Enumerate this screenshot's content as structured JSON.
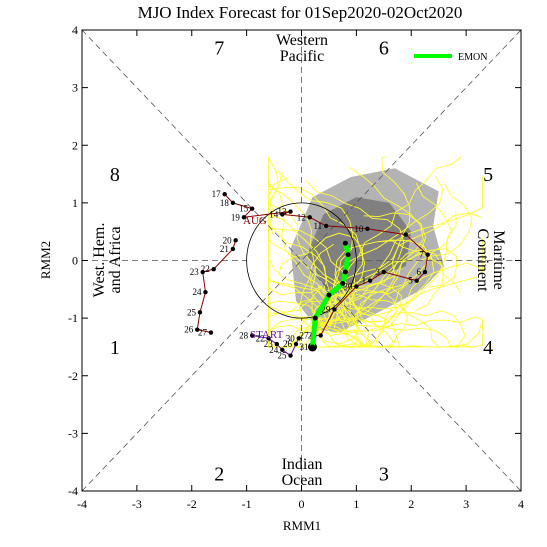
{
  "chart_data": {
    "type": "line",
    "title": "MJO Index Forecast for 01Sep2020-02Oct2020",
    "xlabel": "RMM1",
    "ylabel": "RMM2",
    "xlim": [
      -4,
      4
    ],
    "ylim": [
      -4,
      4
    ],
    "xticks": [
      "-4",
      "-3",
      "-2",
      "-1",
      "0",
      "1",
      "2",
      "3",
      "4"
    ],
    "yticks": [
      "-4",
      "-3",
      "-2",
      "-1",
      "0",
      "1",
      "2",
      "3",
      "4"
    ],
    "phases": [
      {
        "label": "1",
        "x": -3.4,
        "y": -1.5
      },
      {
        "label": "2",
        "x": -1.5,
        "y": -3.7
      },
      {
        "label": "3",
        "x": 1.5,
        "y": -3.7
      },
      {
        "label": "4",
        "x": 3.4,
        "y": -1.5
      },
      {
        "label": "5",
        "x": 3.4,
        "y": 1.5
      },
      {
        "label": "6",
        "x": 1.5,
        "y": 3.7
      },
      {
        "label": "7",
        "x": -1.5,
        "y": 3.7
      },
      {
        "label": "8",
        "x": -3.4,
        "y": 1.5
      }
    ],
    "regions": {
      "top": [
        "Western",
        "Pacific"
      ],
      "bottom": [
        "Indian",
        "Ocean"
      ],
      "left": [
        "West. Hem.",
        "and Africa"
      ],
      "right": [
        "Maritime",
        "Continent"
      ]
    },
    "legend": {
      "label": "EMON",
      "color": "#00ff00",
      "position": "top-right"
    },
    "colors": {
      "observed_line": "#8b0000",
      "start_line": "#6a0dad",
      "ensemble_members": "#ffff33",
      "spread_outer": "#b3b3b3",
      "spread_inner": "#808080",
      "ensemble_mean": "#00ff00"
    },
    "observed_labels": {
      "month": "AUG",
      "start": "START"
    },
    "observed_track": [
      {
        "label": "17",
        "x": -1.4,
        "y": 1.15
      },
      {
        "label": "18",
        "x": -1.25,
        "y": 1.0
      },
      {
        "label": "15",
        "x": -0.9,
        "y": 0.9
      },
      {
        "label": "19",
        "x": -1.05,
        "y": 0.75
      },
      {
        "label": "13",
        "x": -0.2,
        "y": 0.85
      },
      {
        "label": "14",
        "x": -0.35,
        "y": 0.8
      },
      {
        "label": "12",
        "x": 0.15,
        "y": 0.75
      },
      {
        "label": "11",
        "x": 0.45,
        "y": 0.6
      },
      {
        "label": "10",
        "x": 1.2,
        "y": 0.55
      },
      {
        "label": "",
        "x": 1.9,
        "y": 0.45
      },
      {
        "label": "7",
        "x": 2.3,
        "y": 0.1
      },
      {
        "label": "6",
        "x": 2.25,
        "y": -0.2
      },
      {
        "label": "5",
        "x": 2.1,
        "y": -0.35
      },
      {
        "label": "3",
        "x": 1.5,
        "y": -0.2
      },
      {
        "label": "1",
        "x": 1.25,
        "y": -0.35
      },
      {
        "label": "30",
        "x": 1.0,
        "y": -0.45
      },
      {
        "label": "29",
        "x": 0.6,
        "y": -0.85
      },
      {
        "label": "28",
        "x": 0.35,
        "y": -1.3
      },
      {
        "label": "27",
        "x": 0.2,
        "y": -1.3
      },
      {
        "label": "31",
        "x": 0.2,
        "y": -1.5
      }
    ],
    "start_track": [
      {
        "label": "28",
        "x": -0.9,
        "y": -1.3
      },
      {
        "label": "22",
        "x": -0.6,
        "y": -1.35
      },
      {
        "label": "23",
        "x": -0.45,
        "y": -1.45
      },
      {
        "label": "24",
        "x": -0.35,
        "y": -1.55
      },
      {
        "label": "25",
        "x": -0.2,
        "y": -1.65
      },
      {
        "label": "26",
        "x": -0.1,
        "y": -1.45
      },
      {
        "label": "30",
        "x": -0.05,
        "y": -1.35
      }
    ],
    "loop_track": [
      {
        "label": "20",
        "x": -1.2,
        "y": 0.35
      },
      {
        "label": "21",
        "x": -1.25,
        "y": 0.2
      },
      {
        "label": "22",
        "x": -1.6,
        "y": -0.15
      },
      {
        "label": "23",
        "x": -1.8,
        "y": -0.2
      },
      {
        "label": "24",
        "x": -1.75,
        "y": -0.55
      },
      {
        "label": "25",
        "x": -1.85,
        "y": -0.9
      },
      {
        "label": "26",
        "x": -1.9,
        "y": -1.2
      },
      {
        "label": "27",
        "x": -1.65,
        "y": -1.25
      }
    ],
    "ensemble_mean": [
      {
        "x": 0.2,
        "y": -1.5
      },
      {
        "x": 0.25,
        "y": -1.0
      },
      {
        "x": 0.5,
        "y": -0.6
      },
      {
        "x": 0.75,
        "y": -0.4
      },
      {
        "x": 0.8,
        "y": -0.2
      },
      {
        "x": 0.85,
        "y": 0.1
      },
      {
        "x": 0.8,
        "y": 0.3
      }
    ]
  }
}
